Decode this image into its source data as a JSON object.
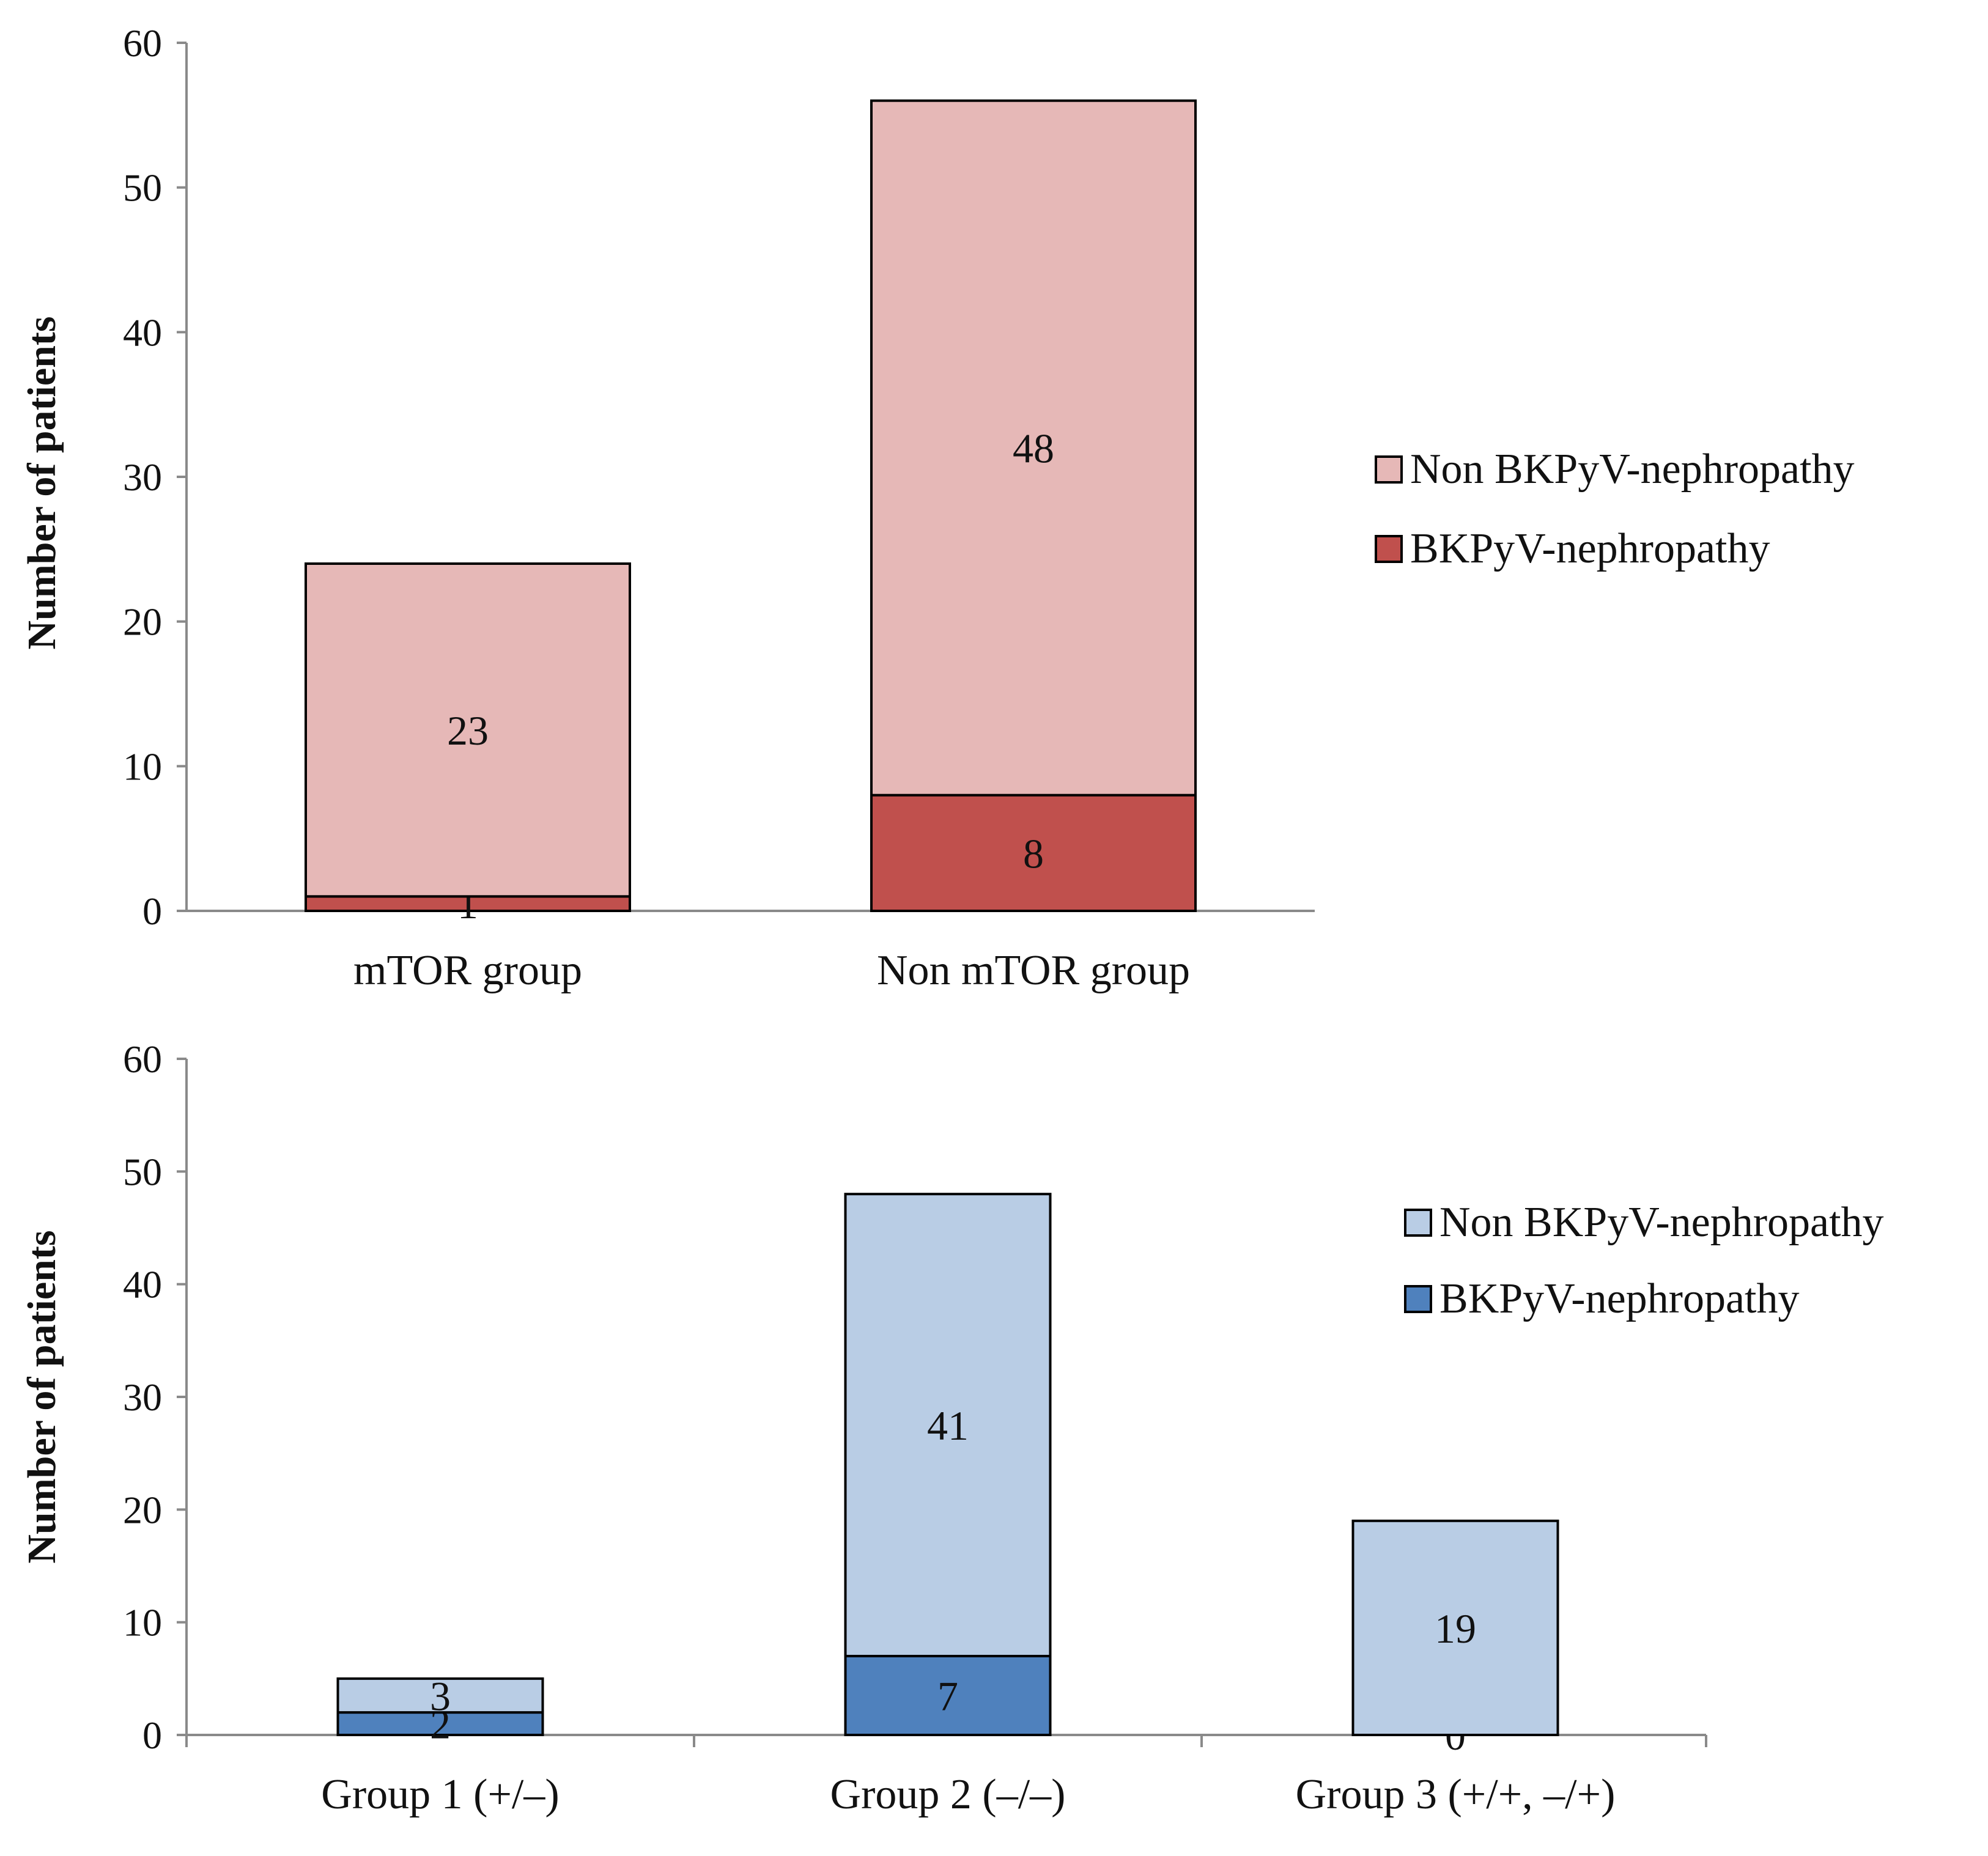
{
  "chart_data": [
    {
      "type": "bar",
      "stacked": true,
      "title": "",
      "xlabel": "",
      "ylabel": "Number of patients",
      "ylim": [
        0,
        60
      ],
      "yticks": [
        0,
        10,
        20,
        30,
        40,
        50,
        60
      ],
      "categories": [
        "mTOR group",
        "Non mTOR group"
      ],
      "series": [
        {
          "name": "BKPyV-nephropathy",
          "color": "#c0504d",
          "values": [
            1,
            8
          ]
        },
        {
          "name": "Non BKPyV-nephropathy",
          "color": "#e6b8b7",
          "values": [
            23,
            48
          ]
        }
      ],
      "legend_order": [
        "Non BKPyV-nephropathy",
        "BKPyV-nephropathy"
      ],
      "legend_position": "right",
      "grid": false,
      "category_ticks": false
    },
    {
      "type": "bar",
      "stacked": true,
      "title": "",
      "xlabel": "",
      "ylabel": "Number of patients",
      "ylim": [
        0,
        60
      ],
      "yticks": [
        0,
        10,
        20,
        30,
        40,
        50,
        60
      ],
      "categories": [
        "Group 1 (+/–)",
        "Group 2 (–/–)",
        "Group 3 (+/+, –/+)"
      ],
      "series": [
        {
          "name": "BKPyV-nephropathy",
          "color": "#4f81bd",
          "values": [
            2,
            7,
            0
          ]
        },
        {
          "name": "Non BKPyV-nephropathy",
          "color": "#b9cde5",
          "values": [
            3,
            41,
            19
          ]
        }
      ],
      "legend_order": [
        "Non BKPyV-nephropathy",
        "BKPyV-nephropathy"
      ],
      "legend_position": "right",
      "grid": false,
      "category_ticks": true
    }
  ]
}
